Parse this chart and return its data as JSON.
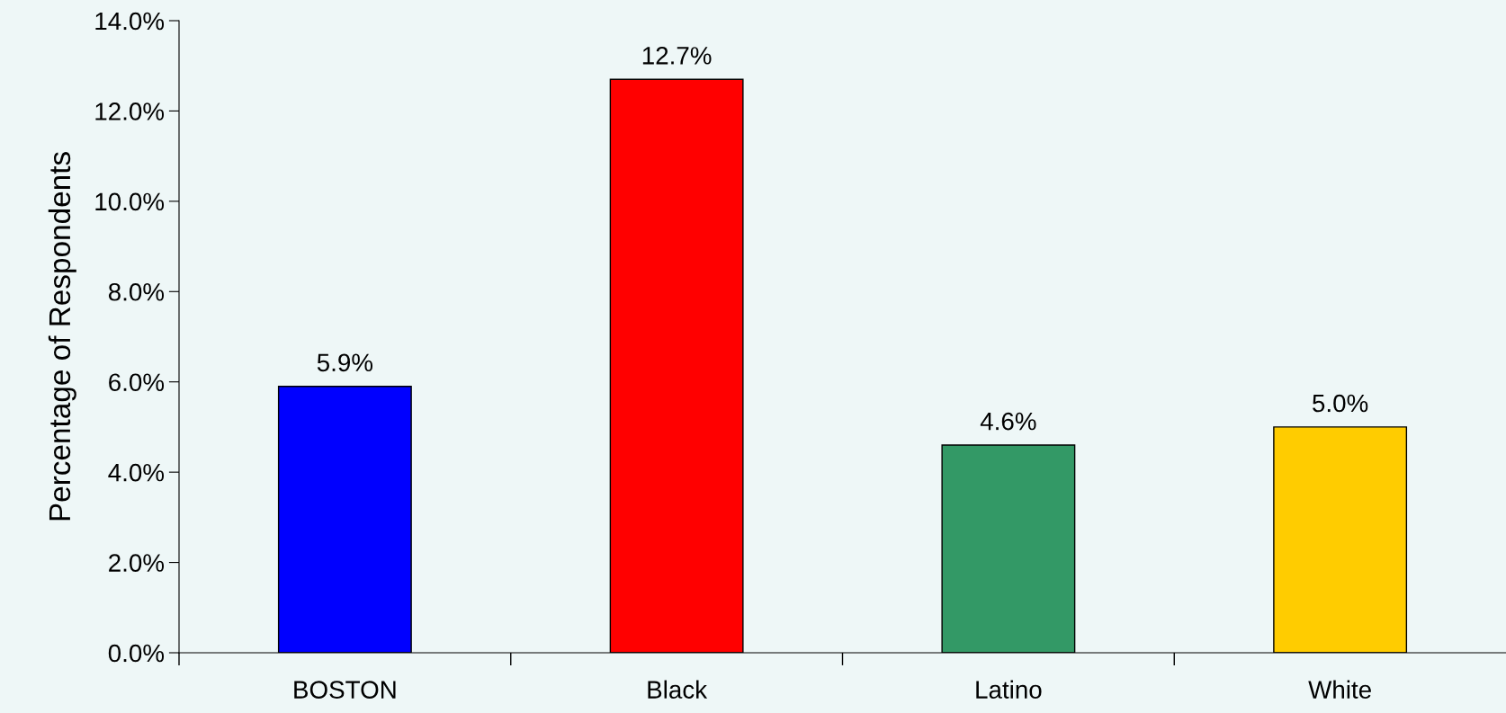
{
  "chart_data": {
    "type": "bar",
    "ylabel": "Percentage of Respondents",
    "categories": [
      "BOSTON",
      "Black",
      "Latino",
      "White"
    ],
    "values": [
      5.9,
      12.7,
      4.6,
      5.0
    ],
    "colors": [
      "#0000ff",
      "#ff0000",
      "#339966",
      "#ffcc00"
    ],
    "value_labels": [
      "5.9%",
      "12.7%",
      "4.6%",
      "5.0%"
    ],
    "ylim": [
      0,
      14
    ],
    "yticks": [
      {
        "value": 0,
        "label": "0.0%"
      },
      {
        "value": 2,
        "label": "2.0%"
      },
      {
        "value": 4,
        "label": "4.0%"
      },
      {
        "value": 6,
        "label": "6.0%"
      },
      {
        "value": 8,
        "label": "8.0%"
      },
      {
        "value": 10,
        "label": "10.0%"
      },
      {
        "value": 12,
        "label": "12.0%"
      },
      {
        "value": 14,
        "label": "14.0%"
      }
    ],
    "grid": false,
    "legend": false
  }
}
